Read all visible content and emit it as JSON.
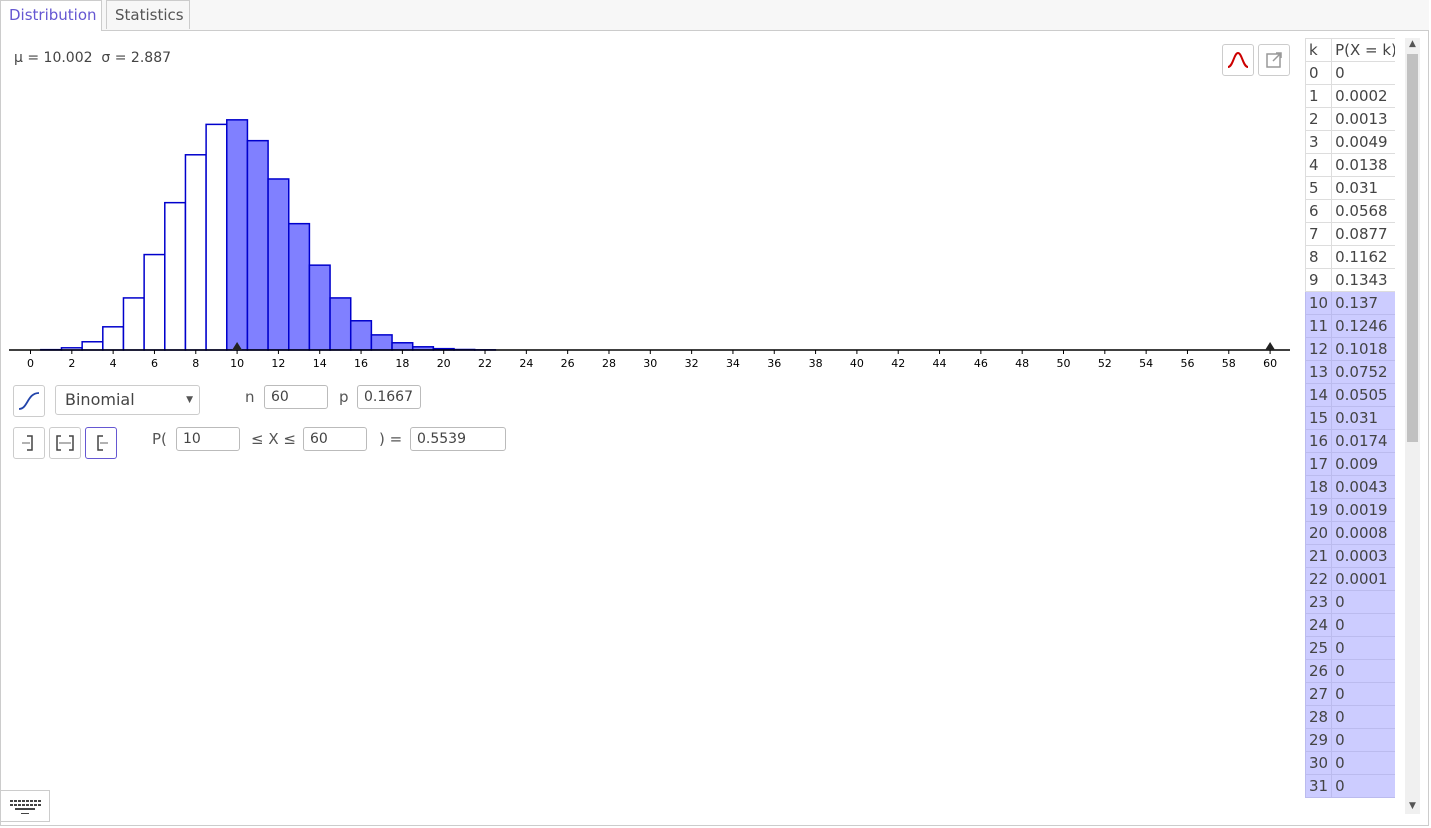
{
  "tabs": [
    {
      "label": "Distribution",
      "active": true
    },
    {
      "label": "Statistics",
      "active": false
    }
  ],
  "stats_line": "µ = 10.002  σ = 2.887",
  "icons": {
    "normal_overlay": "normal-curve-icon",
    "export": "export-icon",
    "cumulative": "cumulative-curve-icon",
    "left_sided": "left-sided-icon",
    "interval": "interval-icon",
    "right_sided": "right-sided-icon",
    "keyboard": "keyboard-icon"
  },
  "distribution": {
    "selected": "Binomial",
    "n_label": "n",
    "n_value": "60",
    "p_label": "p",
    "p_value": "0.1667"
  },
  "probability": {
    "prefix": "P(",
    "lower": "10",
    "middle": "≤ X ≤",
    "upper": "60",
    "suffix": ") =",
    "result": "0.5539"
  },
  "colors": {
    "accent": "#6557d2",
    "bar_stroke": "#0000cc",
    "bar_fill_selected": "#8080ff",
    "table_highlight": "#ccccff",
    "normal_icon": "#cc0000"
  },
  "chart_data": {
    "type": "bar",
    "x": [
      0,
      1,
      2,
      3,
      4,
      5,
      6,
      7,
      8,
      9,
      10,
      11,
      12,
      13,
      14,
      15,
      16,
      17,
      18,
      19,
      20,
      21,
      22,
      23,
      24,
      25,
      26,
      27,
      28,
      29,
      30
    ],
    "values": [
      0,
      0.0002,
      0.0013,
      0.0049,
      0.0138,
      0.031,
      0.0568,
      0.0877,
      0.1162,
      0.1343,
      0.137,
      0.1246,
      0.1018,
      0.0752,
      0.0505,
      0.031,
      0.0174,
      0.009,
      0.0043,
      0.0019,
      0.0008,
      0.0003,
      0.0001,
      0,
      0,
      0,
      0,
      0,
      0,
      0,
      0
    ],
    "selected_range": [
      10,
      60
    ],
    "xlim": [
      0,
      60
    ],
    "xticks": [
      0,
      2,
      4,
      6,
      8,
      10,
      12,
      14,
      16,
      18,
      20,
      22,
      24,
      26,
      28,
      30,
      32,
      34,
      36,
      38,
      40,
      42,
      44,
      46,
      48,
      50,
      52,
      54,
      56,
      58,
      60
    ],
    "markers": [
      10,
      60
    ]
  },
  "table": {
    "header_k": "k",
    "header_p": "P(X = k)",
    "rows": [
      {
        "k": "0",
        "p": "0"
      },
      {
        "k": "1",
        "p": "0.0002"
      },
      {
        "k": "2",
        "p": "0.0013"
      },
      {
        "k": "3",
        "p": "0.0049"
      },
      {
        "k": "4",
        "p": "0.0138"
      },
      {
        "k": "5",
        "p": "0.031"
      },
      {
        "k": "6",
        "p": "0.0568"
      },
      {
        "k": "7",
        "p": "0.0877"
      },
      {
        "k": "8",
        "p": "0.1162"
      },
      {
        "k": "9",
        "p": "0.1343"
      },
      {
        "k": "10",
        "p": "0.137"
      },
      {
        "k": "11",
        "p": "0.1246"
      },
      {
        "k": "12",
        "p": "0.1018"
      },
      {
        "k": "13",
        "p": "0.0752"
      },
      {
        "k": "14",
        "p": "0.0505"
      },
      {
        "k": "15",
        "p": "0.031"
      },
      {
        "k": "16",
        "p": "0.0174"
      },
      {
        "k": "17",
        "p": "0.009"
      },
      {
        "k": "18",
        "p": "0.0043"
      },
      {
        "k": "19",
        "p": "0.0019"
      },
      {
        "k": "20",
        "p": "0.0008"
      },
      {
        "k": "21",
        "p": "0.0003"
      },
      {
        "k": "22",
        "p": "0.0001"
      },
      {
        "k": "23",
        "p": "0"
      },
      {
        "k": "24",
        "p": "0"
      },
      {
        "k": "25",
        "p": "0"
      },
      {
        "k": "26",
        "p": "0"
      },
      {
        "k": "27",
        "p": "0"
      },
      {
        "k": "28",
        "p": "0"
      },
      {
        "k": "29",
        "p": "0"
      },
      {
        "k": "30",
        "p": "0"
      },
      {
        "k": "31",
        "p": "0"
      }
    ],
    "highlight_from": 10
  }
}
